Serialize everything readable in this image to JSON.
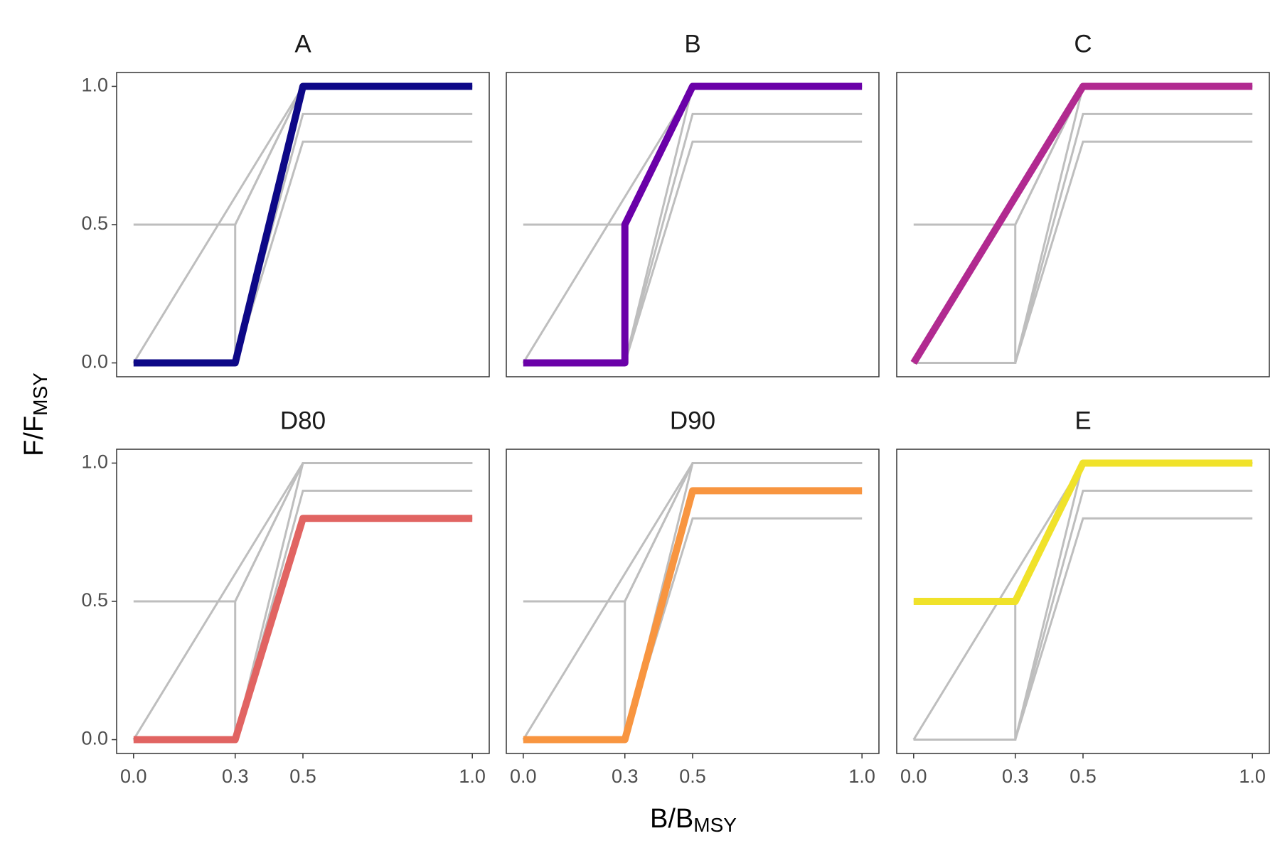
{
  "chart_data": {
    "type": "line",
    "facet": true,
    "background_color": "#bebebe",
    "xlabel": "B/B",
    "xlabel_sub": "MSY",
    "ylabel": "F/F",
    "ylabel_sub": "MSY",
    "xlim": [
      -0.05,
      1.05
    ],
    "ylim": [
      -0.05,
      1.05
    ],
    "xticks": [
      {
        "value": 0,
        "label": "0.0"
      },
      0.3,
      0.5,
      {
        "value": 1,
        "label": "1.0"
      }
    ],
    "yticks": [
      {
        "value": 0,
        "label": "0.0"
      },
      0.5,
      {
        "value": 1,
        "label": "1.0"
      }
    ],
    "series": [
      {
        "name": "A",
        "color": "#0d0887",
        "x": [
          0,
          0.3,
          0.5,
          1
        ],
        "values": [
          0,
          0,
          1,
          1
        ]
      },
      {
        "name": "B",
        "color": "#6a00a8",
        "x": [
          0,
          0.3,
          0.3,
          0.5,
          1
        ],
        "values": [
          0,
          0,
          0.5,
          1,
          1
        ]
      },
      {
        "name": "C",
        "color": "#b12a90",
        "x": [
          0,
          0.5,
          1
        ],
        "values": [
          0,
          1,
          1
        ]
      },
      {
        "name": "D80",
        "color": "#e16462",
        "x": [
          0,
          0.3,
          0.5,
          1
        ],
        "values": [
          0,
          0,
          0.8,
          0.8
        ]
      },
      {
        "name": "D90",
        "color": "#f89540",
        "x": [
          0,
          0.3,
          0.5,
          1
        ],
        "values": [
          0,
          0,
          0.9,
          0.9
        ]
      },
      {
        "name": "E",
        "color": "#f0e22a",
        "x": [
          0,
          0.3,
          0.5,
          1
        ],
        "values": [
          0.5,
          0.5,
          1,
          1
        ]
      }
    ]
  }
}
